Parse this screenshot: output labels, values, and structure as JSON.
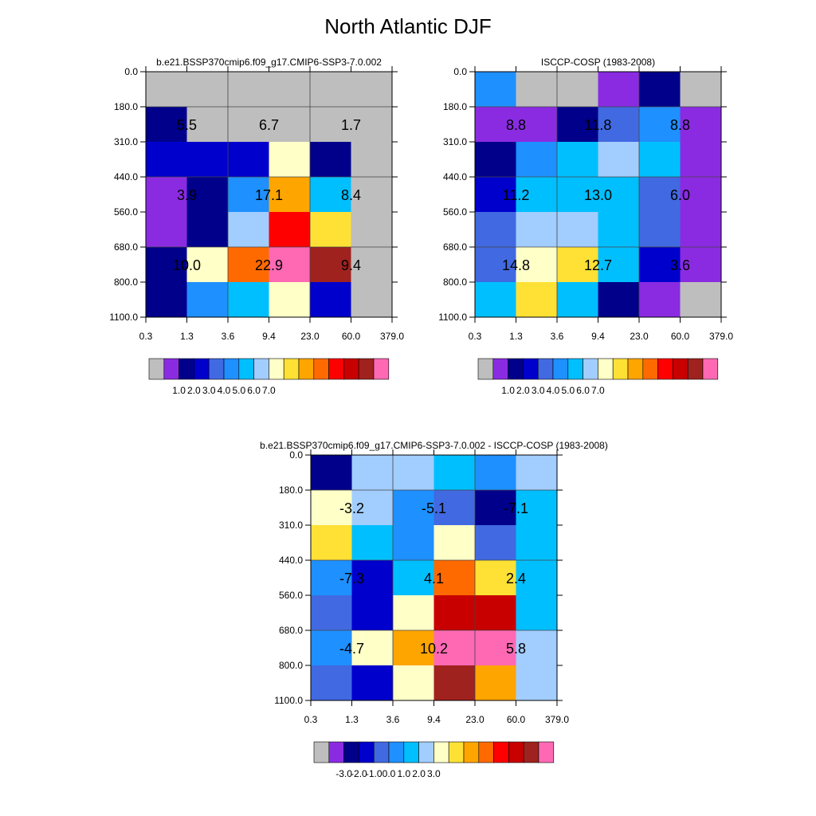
{
  "title": "North Atlantic DJF",
  "colors": {
    "palette": [
      "#bebebe",
      "#8a2be2",
      "#00008b",
      "#0000cd",
      "#4169e1",
      "#1e90ff",
      "#00bfff",
      "#a2cdff",
      "#ffffc8",
      "#ffe135",
      "#ffa500",
      "#ff6a00",
      "#ff0000",
      "#c80000",
      "#a0221e",
      "#ff69b4"
    ],
    "axis": "#000000"
  },
  "chart_data": [
    {
      "type": "heatmap",
      "title": "b.e21.BSSP370cmip6.f09_g17.CMIP6-SSP3-7.0.002",
      "x_ticks": [
        "0.3",
        "1.3",
        "3.6",
        "9.4",
        "23.0",
        "60.0",
        "379.0"
      ],
      "y_ticks": [
        "0.0",
        "180.0",
        "310.0",
        "440.0",
        "560.0",
        "680.0",
        "800.0",
        "1100.0"
      ],
      "cells": [
        [
          0,
          0,
          0,
          0,
          0,
          0
        ],
        [
          2,
          0,
          0,
          0,
          0,
          0
        ],
        [
          3,
          3,
          3,
          8,
          2,
          0
        ],
        [
          1,
          2,
          5,
          10,
          6,
          0
        ],
        [
          1,
          2,
          7,
          12,
          9,
          0
        ],
        [
          2,
          8,
          11,
          15,
          14,
          0
        ],
        [
          2,
          5,
          6,
          8,
          3,
          0
        ]
      ],
      "block_labels": [
        [
          "5.5",
          "6.7",
          "1.7"
        ],
        [
          "3.9",
          "17.1",
          "8.4"
        ],
        [
          "10.0",
          "22.9",
          "9.4"
        ]
      ],
      "colorbar_labels": [
        "1.0",
        "2.0",
        "3.0",
        "4.0",
        "5.0",
        "6.0",
        "7.0"
      ]
    },
    {
      "type": "heatmap",
      "title": "ISCCP-COSP (1983-2008)",
      "x_ticks": [
        "0.3",
        "1.3",
        "3.6",
        "9.4",
        "23.0",
        "60.0",
        "379.0"
      ],
      "y_ticks": [
        "0.0",
        "180.0",
        "310.0",
        "440.0",
        "560.0",
        "680.0",
        "800.0",
        "1100.0"
      ],
      "cells": [
        [
          5,
          0,
          0,
          1,
          2,
          0
        ],
        [
          1,
          1,
          2,
          4,
          5,
          1
        ],
        [
          2,
          5,
          6,
          7,
          6,
          1
        ],
        [
          3,
          6,
          6,
          6,
          4,
          1
        ],
        [
          4,
          7,
          7,
          6,
          4,
          1
        ],
        [
          4,
          8,
          9,
          6,
          3,
          1
        ],
        [
          6,
          9,
          6,
          2,
          1,
          0
        ]
      ],
      "block_labels": [
        [
          "8.8",
          "11.8",
          "8.8"
        ],
        [
          "11.2",
          "13.0",
          "6.0"
        ],
        [
          "14.8",
          "12.7",
          "3.6"
        ]
      ],
      "colorbar_labels": [
        "1.0",
        "2.0",
        "3.0",
        "4.0",
        "5.0",
        "6.0",
        "7.0"
      ]
    },
    {
      "type": "heatmap",
      "title": "b.e21.BSSP370cmip6.f09_g17.CMIP6-SSP3-7.0.002 - ISCCP-COSP (1983-2008)",
      "x_ticks": [
        "0.3",
        "1.3",
        "3.6",
        "9.4",
        "23.0",
        "60.0",
        "379.0"
      ],
      "y_ticks": [
        "0.0",
        "180.0",
        "310.0",
        "440.0",
        "560.0",
        "680.0",
        "800.0",
        "1100.0"
      ],
      "cells": [
        [
          2,
          7,
          7,
          6,
          5,
          7
        ],
        [
          8,
          7,
          5,
          4,
          2,
          6
        ],
        [
          9,
          6,
          5,
          8,
          4,
          6
        ],
        [
          5,
          3,
          6,
          11,
          9,
          6
        ],
        [
          4,
          3,
          8,
          13,
          13,
          6
        ],
        [
          5,
          8,
          10,
          15,
          15,
          7
        ],
        [
          4,
          3,
          8,
          14,
          10,
          7
        ]
      ],
      "block_labels": [
        [
          "-3.2",
          "-5.1",
          "-7.1"
        ],
        [
          "-7.3",
          "4.1",
          "2.4"
        ],
        [
          "-4.7",
          "10.2",
          "5.8"
        ]
      ],
      "colorbar_labels": [
        "-3.0",
        "-2.0",
        "-1.0",
        "0.0",
        "1.0",
        "2.0",
        "3.0"
      ]
    }
  ]
}
